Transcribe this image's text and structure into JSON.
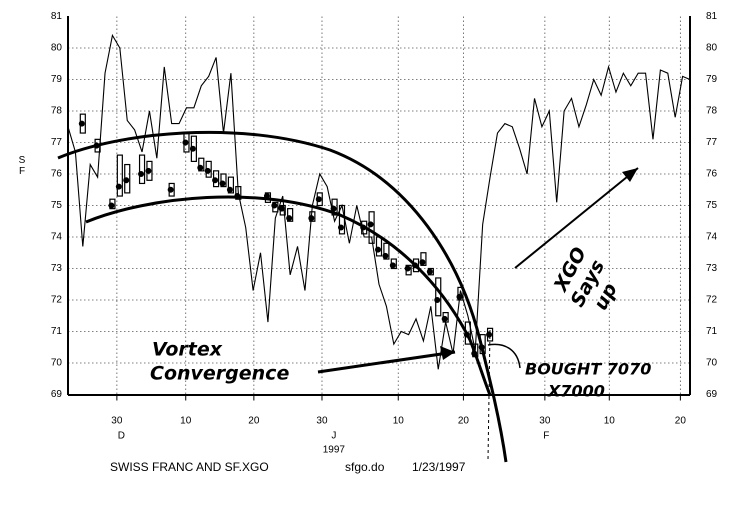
{
  "chart_data": {
    "type": "line_bars",
    "ylabel": "SF",
    "xlim": [
      0,
      84
    ],
    "ylim": [
      69,
      81
    ],
    "yticks": [
      69,
      70,
      71,
      72,
      73,
      74,
      75,
      76,
      77,
      78,
      79,
      80,
      81
    ],
    "right_axis": true,
    "grid": true,
    "xticks": [
      {
        "value": 6.6,
        "label": "30"
      },
      {
        "value": 15.9,
        "label": "10"
      },
      {
        "value": 25.1,
        "label": "20"
      },
      {
        "value": 34.3,
        "label": "30"
      },
      {
        "value": 44.6,
        "label": "10"
      },
      {
        "value": 53.4,
        "label": "20"
      },
      {
        "value": 64.4,
        "label": "30"
      },
      {
        "value": 73.1,
        "label": "10"
      },
      {
        "value": 82.7,
        "label": "20"
      }
    ],
    "months": [
      {
        "value": 7.2,
        "label": "D"
      },
      {
        "value": 35.9,
        "label": "J"
      },
      {
        "value": 64.6,
        "label": "F"
      }
    ],
    "year": {
      "value": 35.9,
      "label": "1997"
    },
    "line": {
      "color": "#000000",
      "values": [
        77.5,
        76.7,
        73.7,
        76.3,
        75.9,
        79.2,
        80.4,
        80,
        77.7,
        77.4,
        76.7,
        78,
        76.5,
        79.4,
        77.6,
        77.6,
        78.1,
        78.1,
        78.8,
        79.1,
        79.7,
        77.3,
        79.2,
        75.4,
        74.3,
        72.3,
        73.5,
        71.3,
        74.6,
        75.3,
        72.8,
        73.7,
        72.3,
        75,
        76,
        75.6,
        74.5,
        75,
        73.8,
        75,
        74,
        74,
        72.5,
        71.8,
        70.6,
        71,
        70.9,
        71.4,
        70.7,
        71.8,
        69.8,
        71.3,
        70.3,
        72.3,
        71.5,
        70.4,
        74.4,
        75.9,
        77.3,
        77.6,
        77.5,
        76.8,
        76,
        78.4,
        77.5,
        78,
        75.1,
        78,
        78.4,
        77.5,
        78.2,
        79,
        78.5,
        79.4,
        78.6,
        79.2,
        78.8,
        79.2,
        79.2,
        77.1,
        79.3,
        79.2,
        77.8,
        79.1,
        79
      ]
    },
    "bars": {
      "color": "#000000",
      "x": [
        2,
        4,
        6,
        7,
        8,
        10,
        11,
        14,
        16,
        17,
        18,
        19,
        20,
        21,
        22,
        23,
        27,
        28,
        29,
        30,
        33,
        34,
        36,
        37,
        40,
        41,
        42,
        43,
        44,
        46,
        47,
        48,
        49,
        50,
        51,
        53,
        54,
        55,
        56,
        57
      ],
      "low": [
        77.3,
        76.7,
        74.9,
        75.3,
        75.4,
        75.7,
        75.8,
        75.3,
        76.7,
        76.4,
        76.1,
        75.9,
        75.6,
        75.6,
        75.4,
        75.2,
        75.1,
        74.8,
        74.7,
        74.5,
        74.5,
        75.0,
        74.7,
        74.1,
        74.1,
        73.8,
        73.4,
        73.3,
        73.0,
        72.8,
        72.9,
        73.1,
        72.8,
        71.5,
        71.3,
        72.0,
        70.6,
        70.2,
        70.3,
        70.7
      ],
      "high": [
        77.9,
        77.1,
        75.2,
        76.6,
        76.3,
        76.6,
        76.4,
        75.7,
        77.3,
        77.2,
        76.5,
        76.4,
        76.1,
        76.0,
        75.9,
        75.6,
        75.4,
        75.1,
        75.0,
        74.9,
        74.8,
        75.4,
        75.2,
        75.0,
        74.5,
        74.8,
        74.0,
        73.8,
        73.3,
        73.1,
        73.3,
        73.5,
        73.0,
        72.7,
        71.6,
        72.4,
        71.3,
        70.6,
        70.9,
        71.1
      ],
      "close": [
        77.6,
        76.9,
        75.0,
        75.6,
        75.8,
        76.0,
        76.1,
        75.5,
        77.0,
        76.8,
        76.2,
        76.1,
        75.8,
        75.7,
        75.5,
        75.3,
        75.3,
        75.0,
        74.9,
        74.6,
        74.6,
        75.2,
        74.9,
        74.3,
        74.3,
        74.4,
        73.6,
        73.4,
        73.1,
        73.0,
        73.1,
        73.2,
        72.9,
        72.0,
        71.4,
        72.1,
        70.9,
        70.3,
        70.5,
        70.9
      ]
    },
    "annotations": {
      "vortex": [
        "Vortex",
        "Convergence"
      ],
      "bought": [
        "BOUGHT 7070",
        "X7000"
      ],
      "xgo": [
        "XGO",
        "Says",
        "up"
      ]
    },
    "footer": {
      "title": "SWISS FRANC AND SF.XGO",
      "file": "sfgo.do",
      "date": "1/23/1997"
    }
  }
}
